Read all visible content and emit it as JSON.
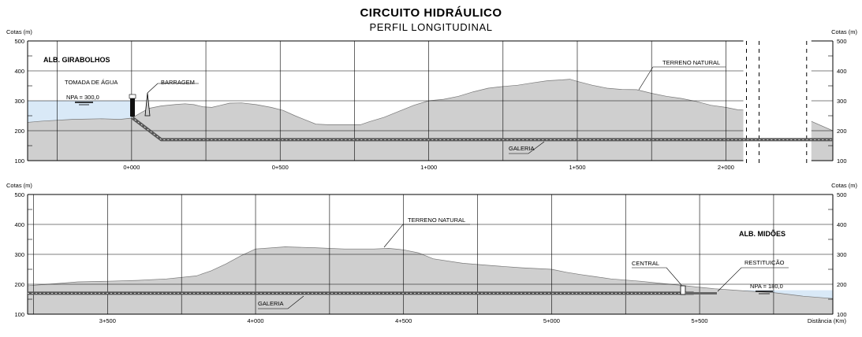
{
  "title": "CIRCUITO HIDRÁULICO",
  "subtitle": "PERFIL LONGITUDINAL",
  "colors": {
    "terrain": "#cfcfcf",
    "water": "#d9e9f7",
    "grid": "#000000",
    "tunnel": "#555555"
  },
  "chart_data": [
    {
      "type": "area",
      "ylabel": "Cotas (m)",
      "ylim": [
        100,
        500
      ],
      "yticks": [
        100,
        200,
        300,
        400,
        500
      ],
      "xlim": [
        -350,
        2360
      ],
      "xticks": [
        {
          "x": 0,
          "label": "0+000"
        },
        {
          "x": 500,
          "label": "0+500"
        },
        {
          "x": 1000,
          "label": "1+000"
        },
        {
          "x": 1500,
          "label": "1+500"
        },
        {
          "x": 2000,
          "label": "2+000"
        }
      ],
      "break": [
        2080,
        2240
      ],
      "terrain": [
        [
          -350,
          228
        ],
        [
          -300,
          232
        ],
        [
          -200,
          238
        ],
        [
          -100,
          240
        ],
        [
          -40,
          238
        ],
        [
          0,
          242
        ],
        [
          35,
          262
        ],
        [
          60,
          275
        ],
        [
          100,
          283
        ],
        [
          150,
          288
        ],
        [
          180,
          290
        ],
        [
          210,
          287
        ],
        [
          240,
          280
        ],
        [
          270,
          278
        ],
        [
          300,
          285
        ],
        [
          330,
          292
        ],
        [
          370,
          293
        ],
        [
          420,
          287
        ],
        [
          470,
          278
        ],
        [
          510,
          268
        ],
        [
          550,
          250
        ],
        [
          580,
          238
        ],
        [
          620,
          222
        ],
        [
          660,
          220
        ],
        [
          700,
          220
        ],
        [
          750,
          220
        ],
        [
          770,
          220
        ],
        [
          800,
          230
        ],
        [
          850,
          245
        ],
        [
          900,
          265
        ],
        [
          950,
          285
        ],
        [
          1000,
          300
        ],
        [
          1050,
          305
        ],
        [
          1100,
          315
        ],
        [
          1150,
          330
        ],
        [
          1200,
          342
        ],
        [
          1250,
          348
        ],
        [
          1300,
          352
        ],
        [
          1350,
          360
        ],
        [
          1400,
          367
        ],
        [
          1450,
          370
        ],
        [
          1475,
          372
        ],
        [
          1500,
          365
        ],
        [
          1550,
          352
        ],
        [
          1600,
          342
        ],
        [
          1650,
          338
        ],
        [
          1700,
          337
        ],
        [
          1750,
          325
        ],
        [
          1800,
          315
        ],
        [
          1850,
          308
        ],
        [
          1900,
          298
        ],
        [
          1950,
          285
        ],
        [
          2000,
          278
        ],
        [
          2040,
          270
        ],
        [
          2080,
          268
        ],
        [
          2240,
          252
        ],
        [
          2360,
          200
        ]
      ],
      "water_level": 300,
      "water_x": [
        -350,
        10
      ],
      "tunnel": [
        [
          0,
          245
        ],
        [
          100,
          170
        ],
        [
          2360,
          170
        ]
      ],
      "labels": {
        "reservoir": "ALB. GIRABOLHOS",
        "intake": "TOMADA DE ÁGUA",
        "dam": "BARRAGEM",
        "npa": "NPA = 300,0",
        "terrain": "TERRENO NATURAL",
        "tunnel": "GALERIA"
      }
    },
    {
      "type": "area",
      "ylabel": "Cotas (m)",
      "xlabel": "Distância (Km)",
      "ylim": [
        100,
        500
      ],
      "yticks": [
        100,
        200,
        300,
        400,
        500
      ],
      "xlim": [
        3230,
        5950
      ],
      "xticks": [
        {
          "x": 3500,
          "label": "3+500"
        },
        {
          "x": 4000,
          "label": "4+000"
        },
        {
          "x": 4500,
          "label": "4+500"
        },
        {
          "x": 5000,
          "label": "5+000"
        },
        {
          "x": 5500,
          "label": "5+500"
        }
      ],
      "terrain": [
        [
          3230,
          195
        ],
        [
          3300,
          200
        ],
        [
          3400,
          208
        ],
        [
          3500,
          210
        ],
        [
          3600,
          213
        ],
        [
          3700,
          218
        ],
        [
          3800,
          228
        ],
        [
          3850,
          245
        ],
        [
          3900,
          268
        ],
        [
          3950,
          295
        ],
        [
          4000,
          318
        ],
        [
          4100,
          325
        ],
        [
          4200,
          322
        ],
        [
          4300,
          318
        ],
        [
          4400,
          318
        ],
        [
          4450,
          320
        ],
        [
          4500,
          315
        ],
        [
          4550,
          305
        ],
        [
          4600,
          285
        ],
        [
          4700,
          270
        ],
        [
          4800,
          262
        ],
        [
          4900,
          255
        ],
        [
          5000,
          250
        ],
        [
          5050,
          240
        ],
        [
          5100,
          232
        ],
        [
          5150,
          225
        ],
        [
          5200,
          218
        ],
        [
          5300,
          210
        ],
        [
          5350,
          205
        ],
        [
          5400,
          200
        ],
        [
          5450,
          195
        ],
        [
          5500,
          190
        ],
        [
          5550,
          185
        ],
        [
          5650,
          178
        ],
        [
          5750,
          172
        ],
        [
          5850,
          160
        ],
        [
          5950,
          152
        ]
      ],
      "water_level": 180,
      "water_x": [
        5650,
        5950
      ],
      "tunnel": [
        [
          3230,
          170
        ],
        [
          5480,
          170
        ]
      ],
      "labels": {
        "reservoir": "ALB. MIDÕES",
        "station": "CENTRAL",
        "outlet": "RESTITUIÇÃO",
        "npa": "NPA = 180,0",
        "terrain": "TERRENO NATURAL",
        "tunnel": "GALERIA"
      }
    }
  ]
}
